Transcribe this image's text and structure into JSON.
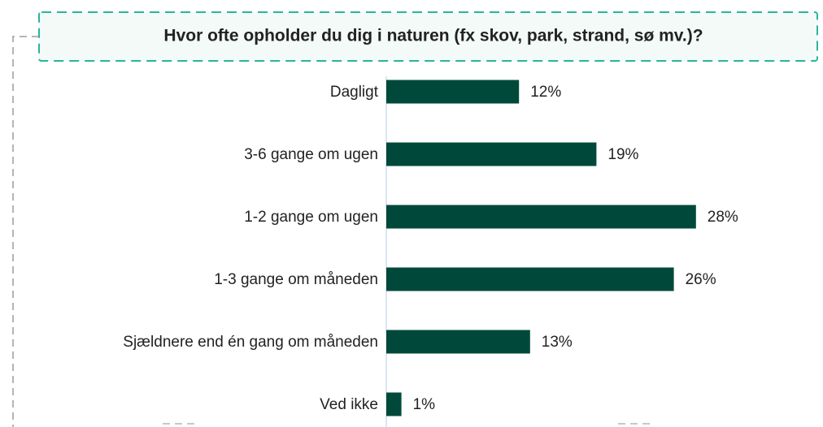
{
  "chart_data": {
    "type": "bar",
    "title": "Hvor ofte opholder du dig i naturen (fx skov, park, strand, sø mv.)?",
    "categories": [
      "Dagligt",
      "3-6 gange om ugen",
      "1-2 gange om ugen",
      "1-3 gange om måneden",
      "Sjældnere end én gang om måneden",
      "Ved ikke"
    ],
    "values": [
      12,
      19,
      28,
      26,
      13,
      1
    ],
    "value_labels": [
      "12%",
      "19%",
      "28%",
      "26%",
      "13%",
      "1%"
    ],
    "color": "#00493a"
  }
}
